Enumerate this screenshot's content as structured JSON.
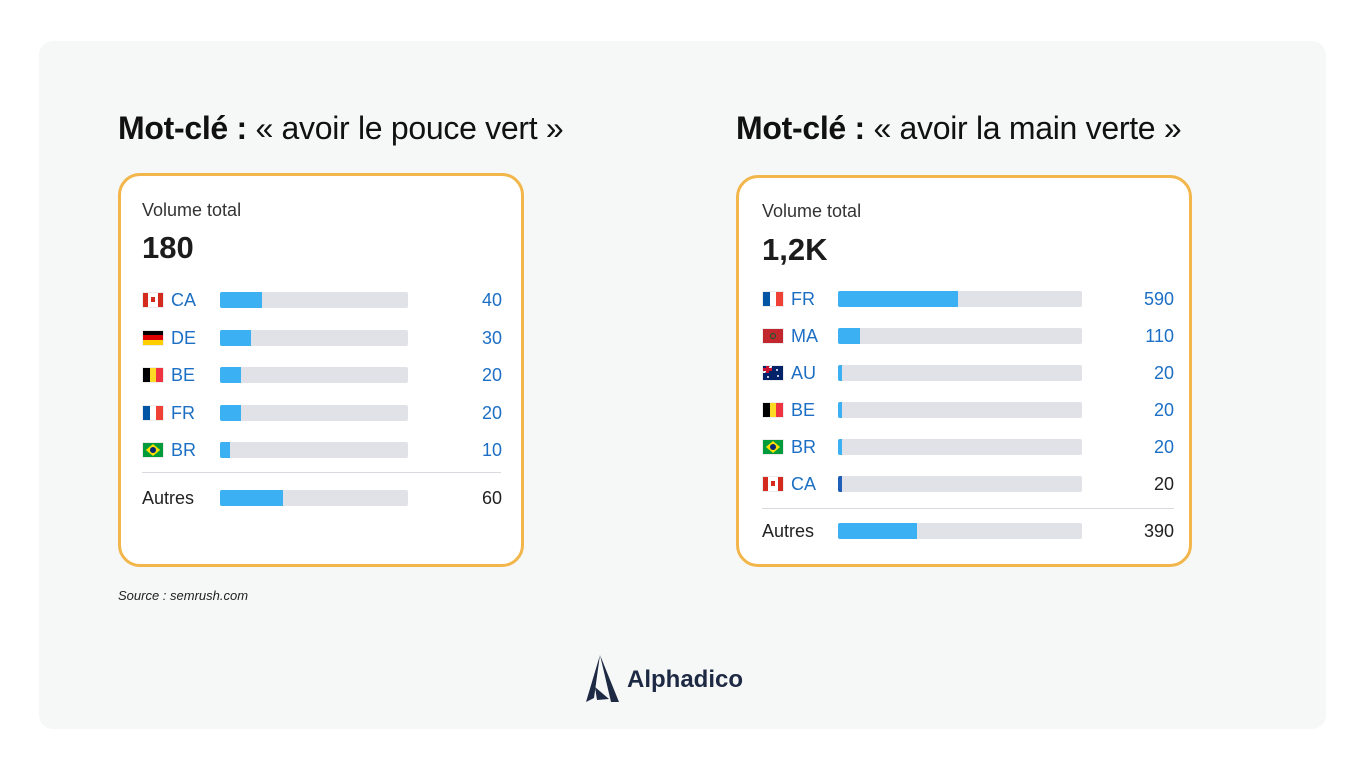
{
  "colors": {
    "panel_bg": "#f6f7f7",
    "card_border": "#f2b64b",
    "bar_fill": "#3bb0f3",
    "bar_track": "#e1e2e8",
    "link_blue": "#1c6fc4",
    "brand_navy": "#1e2a44"
  },
  "left": {
    "keyword_label": "Mot-clé :",
    "keyword_text": "« avoir le pouce vert »",
    "volume_label": "Volume total",
    "volume_value": "180"
  },
  "right": {
    "keyword_label": "Mot-clé :",
    "keyword_text": "« avoir la main verte »",
    "volume_label": "Volume total",
    "volume_value": "1,2K"
  },
  "chart_data": [
    {
      "type": "bar",
      "orientation": "horizontal",
      "max": 180,
      "rows": [
        {
          "country": "CA",
          "flag": "canada-flag",
          "value": 40,
          "display": "40",
          "value_color": "blue"
        },
        {
          "country": "DE",
          "flag": "germany-flag",
          "value": 30,
          "display": "30",
          "value_color": "blue"
        },
        {
          "country": "BE",
          "flag": "belgium-flag",
          "value": 20,
          "display": "20",
          "value_color": "blue"
        },
        {
          "country": "FR",
          "flag": "france-flag",
          "value": 20,
          "display": "20",
          "value_color": "blue"
        },
        {
          "country": "BR",
          "flag": "brazil-flag",
          "value": 10,
          "display": "10",
          "value_color": "blue"
        }
      ],
      "others": {
        "label": "Autres",
        "value": 60,
        "display": "60"
      }
    },
    {
      "type": "bar",
      "orientation": "horizontal",
      "max": 1200,
      "rows": [
        {
          "country": "FR",
          "flag": "france-flag",
          "value": 590,
          "display": "590",
          "value_color": "blue"
        },
        {
          "country": "MA",
          "flag": "morocco-flag",
          "value": 110,
          "display": "110",
          "value_color": "blue"
        },
        {
          "country": "AU",
          "flag": "australia-flag",
          "value": 20,
          "display": "20",
          "value_color": "blue"
        },
        {
          "country": "BE",
          "flag": "belgium-flag",
          "value": 20,
          "display": "20",
          "value_color": "blue"
        },
        {
          "country": "BR",
          "flag": "brazil-flag",
          "value": 20,
          "display": "20",
          "value_color": "blue"
        },
        {
          "country": "CA",
          "flag": "canada-flag",
          "value": 20,
          "display": "20",
          "value_color": "dark"
        }
      ],
      "others": {
        "label": "Autres",
        "value": 390,
        "display": "390"
      }
    }
  ],
  "source": "Source : semrush.com",
  "brand": {
    "name": "Alphadico",
    "logo_icon": "alphadico-logo-icon"
  }
}
